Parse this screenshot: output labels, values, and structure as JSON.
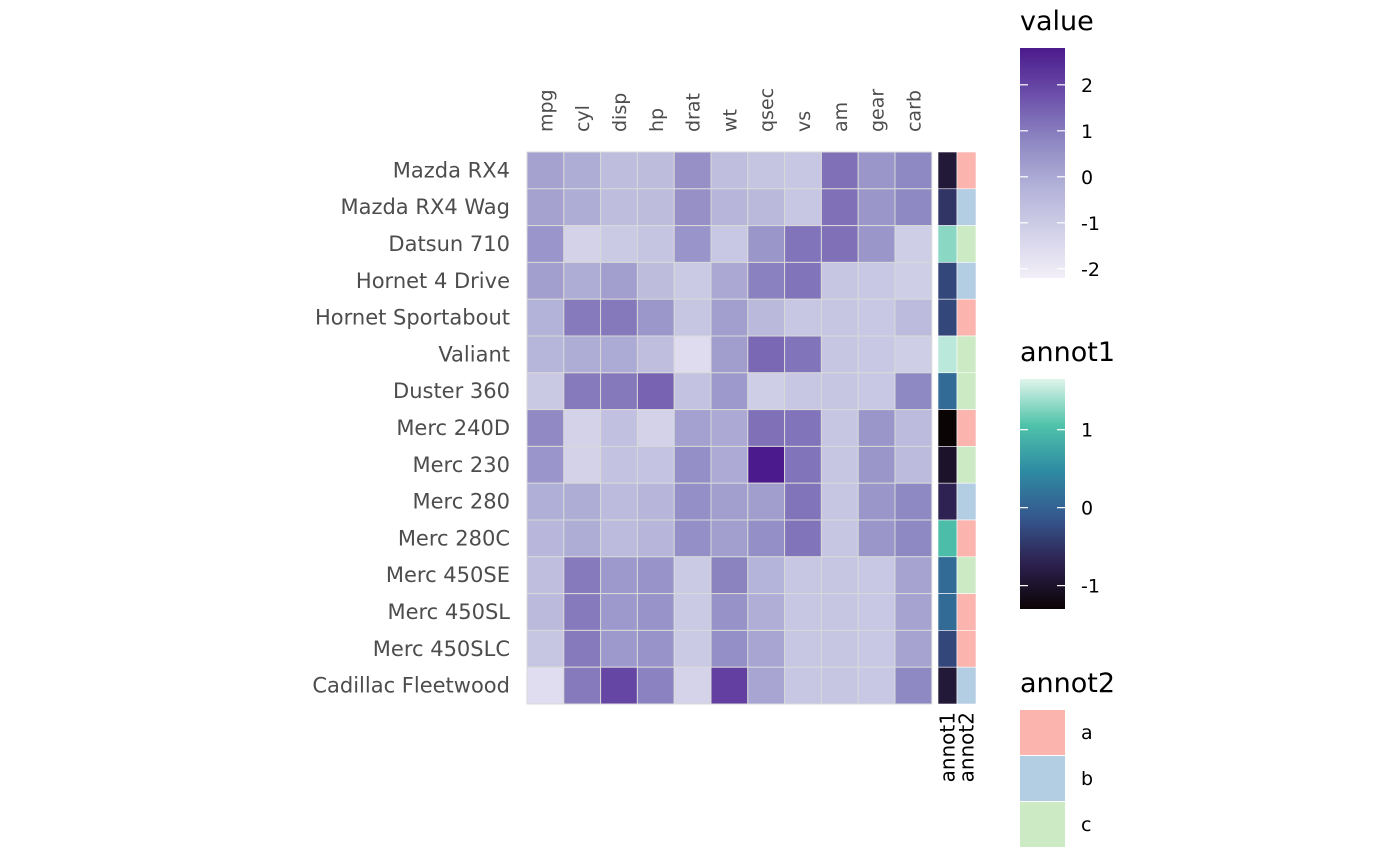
{
  "chart_data": {
    "type": "heatmap",
    "rows": [
      "Mazda RX4",
      "Mazda RX4 Wag",
      "Datsun 710",
      "Hornet 4 Drive",
      "Hornet Sportabout",
      "Valiant",
      "Duster 360",
      "Merc 240D",
      "Merc 230",
      "Merc 280",
      "Merc 280C",
      "Merc 450SE",
      "Merc 450SL",
      "Merc 450SLC",
      "Cadillac Fleetwood"
    ],
    "columns": [
      "mpg",
      "cyl",
      "disp",
      "hp",
      "drat",
      "wt",
      "qsec",
      "vs",
      "am",
      "gear",
      "carb"
    ],
    "values": [
      [
        0.15,
        -0.1,
        -0.57,
        -0.54,
        0.57,
        -0.61,
        -0.78,
        -0.87,
        1.19,
        0.42,
        0.74
      ],
      [
        0.15,
        -0.1,
        -0.57,
        -0.54,
        0.57,
        -0.35,
        -0.46,
        -0.87,
        1.19,
        0.42,
        0.74
      ],
      [
        0.45,
        -1.22,
        -0.99,
        -0.78,
        0.47,
        -0.92,
        0.43,
        1.12,
        1.19,
        0.42,
        -1.12
      ],
      [
        0.22,
        -0.1,
        0.22,
        -0.54,
        -0.97,
        -0.0,
        0.89,
        1.12,
        -0.81,
        -0.93,
        -1.12
      ],
      [
        -0.23,
        1.01,
        1.04,
        0.41,
        -0.84,
        0.23,
        -0.46,
        -0.87,
        -0.81,
        -0.93,
        -0.5
      ],
      [
        -0.33,
        -0.1,
        -0.05,
        -0.61,
        -1.56,
        0.25,
        1.33,
        1.12,
        -0.81,
        -0.93,
        -1.12
      ],
      [
        -0.96,
        1.01,
        1.04,
        1.43,
        -0.72,
        0.36,
        -1.12,
        -0.87,
        -0.81,
        -0.93,
        0.74
      ],
      [
        0.72,
        -1.22,
        -0.68,
        -1.24,
        0.18,
        -0.03,
        1.2,
        1.12,
        -0.81,
        0.42,
        -0.5
      ],
      [
        0.45,
        -1.22,
        -0.73,
        -0.75,
        0.6,
        -0.07,
        2.83,
        1.12,
        -0.81,
        0.42,
        -0.5
      ],
      [
        -0.15,
        -0.1,
        -0.51,
        -0.35,
        0.6,
        0.23,
        0.25,
        1.12,
        -0.81,
        0.42,
        0.74
      ],
      [
        -0.38,
        -0.1,
        -0.51,
        -0.35,
        0.6,
        0.23,
        0.59,
        1.12,
        -0.81,
        0.42,
        0.74
      ],
      [
        -0.61,
        1.01,
        0.36,
        0.49,
        -0.98,
        0.87,
        -0.25,
        -0.87,
        -0.81,
        -0.93,
        0.12
      ],
      [
        -0.47,
        1.01,
        0.36,
        0.49,
        -0.98,
        0.52,
        -0.14,
        -0.87,
        -0.81,
        -0.93,
        0.12
      ],
      [
        -0.81,
        1.01,
        0.36,
        0.49,
        -0.98,
        0.58,
        0.08,
        -0.87,
        -0.81,
        -0.93,
        0.12
      ],
      [
        -1.61,
        1.01,
        1.95,
        0.85,
        -1.25,
        2.08,
        0.07,
        -0.87,
        -0.81,
        -0.93,
        0.74
      ]
    ],
    "annot1": [
      -0.9,
      -0.5,
      1.3,
      -0.3,
      -0.3,
      1.5,
      0.1,
      -1.3,
      -1.0,
      -0.7,
      1.0,
      0.1,
      0.1,
      -0.3,
      -0.9
    ],
    "annot2": [
      "a",
      "b",
      "c",
      "b",
      "a",
      "c",
      "c",
      "a",
      "c",
      "b",
      "a",
      "c",
      "a",
      "a",
      "b"
    ],
    "annotation_columns": [
      "annot1",
      "annot2"
    ],
    "legends": {
      "value": {
        "title": "value",
        "ticks": [
          2,
          1,
          0,
          -1,
          -2
        ],
        "range": [
          -2.2,
          2.8
        ],
        "colors": [
          "#f2eff8",
          "#d2d1e8",
          "#b2b1d8",
          "#8d86c2",
          "#6b4ea9",
          "#4b1a8c"
        ]
      },
      "annot1": {
        "title": "annot1",
        "ticks": [
          1,
          0,
          -1
        ],
        "range": [
          -1.3,
          1.65
        ],
        "colors": [
          "#0b0405",
          "#2d2150",
          "#35588e",
          "#2e8ba3",
          "#4fc3aa",
          "#dff5ea"
        ]
      },
      "annot2": {
        "title": "annot2",
        "levels": [
          "a",
          "b",
          "c"
        ],
        "colors": {
          "a": "#fbb4ae",
          "b": "#b3cde3",
          "c": "#ccebc5"
        }
      }
    }
  }
}
